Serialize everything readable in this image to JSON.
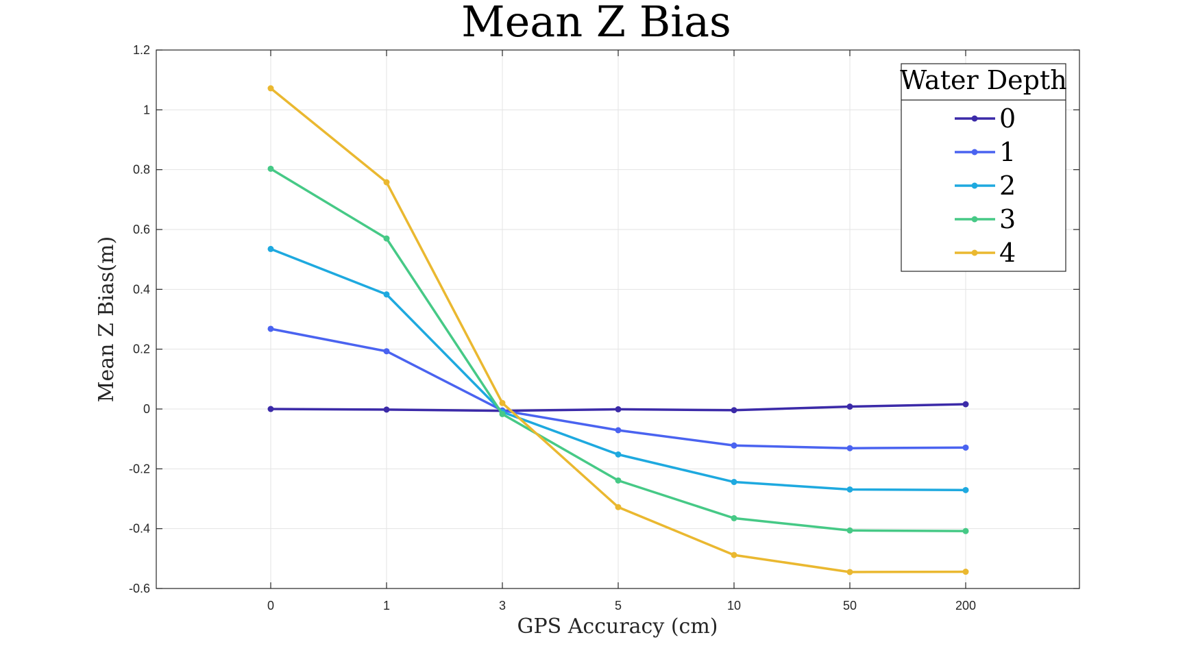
{
  "chart_data": {
    "type": "line",
    "title": "Mean Z Bias",
    "xlabel": "GPS Accuracy (cm)",
    "ylabel": "Mean Z Bias(m)",
    "categories": [
      "0",
      "1",
      "3",
      "5",
      "10",
      "50",
      "200"
    ],
    "yticks": [
      "-0.6",
      "-0.4",
      "-0.2",
      "0",
      "0.2",
      "0.4",
      "0.6",
      "0.8",
      "1",
      "1.2"
    ],
    "ytick_values": [
      -0.6,
      -0.4,
      -0.2,
      0,
      0.2,
      0.4,
      0.6,
      0.8,
      1,
      1.2
    ],
    "ylim": [
      -0.6,
      1.2
    ],
    "grid": true,
    "legend_title": "Water Depth",
    "legend_position": "top-right",
    "series": [
      {
        "name": "0",
        "color": "#3b2aa8",
        "values": [
          0.0,
          -0.002,
          -0.006,
          -0.001,
          -0.004,
          0.008,
          0.016
        ]
      },
      {
        "name": "1",
        "color": "#4a63f0",
        "values": [
          0.268,
          0.193,
          -0.005,
          -0.071,
          -0.122,
          -0.131,
          -0.129
        ]
      },
      {
        "name": "2",
        "color": "#1ea9df",
        "values": [
          0.535,
          0.383,
          -0.01,
          -0.152,
          -0.244,
          -0.269,
          -0.271
        ]
      },
      {
        "name": "3",
        "color": "#46c986",
        "values": [
          0.803,
          0.57,
          -0.017,
          -0.239,
          -0.365,
          -0.406,
          -0.408
        ]
      },
      {
        "name": "4",
        "color": "#eab830",
        "values": [
          1.072,
          0.758,
          0.02,
          -0.328,
          -0.488,
          -0.545,
          -0.544
        ]
      }
    ]
  }
}
